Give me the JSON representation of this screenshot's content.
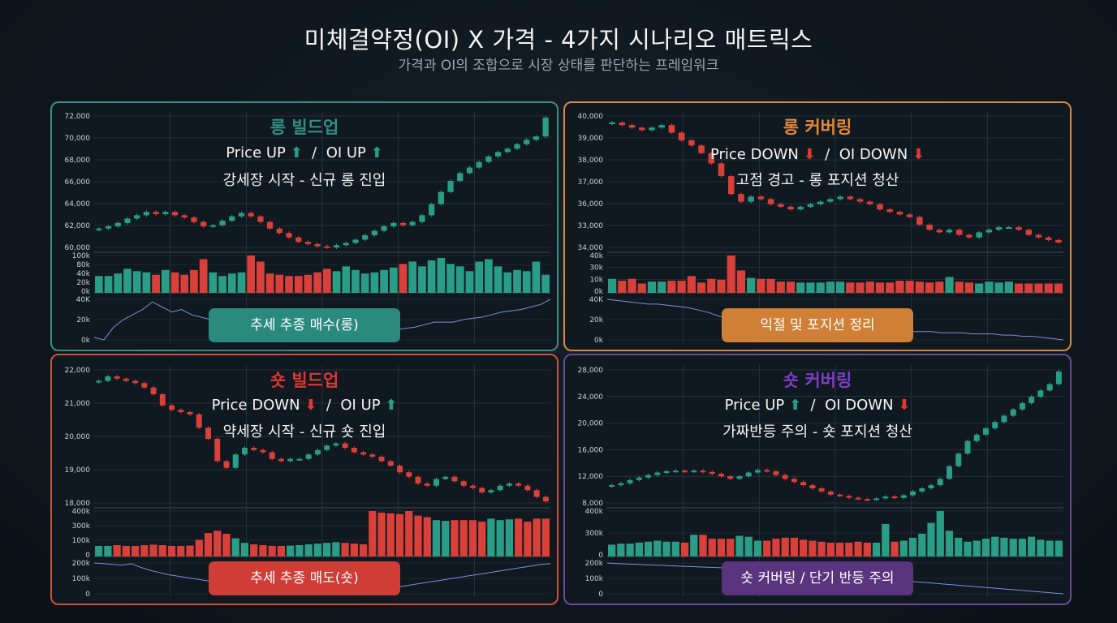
{
  "header": {
    "title": "미체결약정(OI) X 가격 - 4가지 시나리오 매트릭스",
    "subtitle": "가격과 OI의 조합으로 시장 상태를 판단하는 프레임워크"
  },
  "colors": {
    "up": "#2a9d86",
    "down": "#d9403a",
    "oi_line": "#7d8fe0"
  },
  "chart_data": [
    {
      "type": "candlestick",
      "title": "롱 빌드업",
      "title_color": "#2f8f86",
      "border_color": "#3b8f86",
      "price_label": "Price UP",
      "price_arrow": "⬆",
      "price_arrow_color": "#2a9d86",
      "oi_label": "OI UP",
      "oi_arrow": "⬆",
      "oi_arrow_color": "#2a9d86",
      "description": "강세장 시작 - 신규 롱 진입",
      "badge": "추세 추종 매수(롱)",
      "badge_color": "#2a8a7e",
      "price_ticks": [
        "72,000",
        "70,000",
        "68,000",
        "66,000",
        "64,000",
        "62,000",
        "60,000"
      ],
      "volume_ticks": [
        "100k",
        "80k",
        "40k",
        "20k",
        "0k"
      ],
      "oi_ticks": [
        "40K",
        "20k",
        "0k"
      ],
      "closes": [
        62000,
        62200,
        62500,
        62900,
        63200,
        63500,
        63300,
        63500,
        63200,
        63000,
        62600,
        62200,
        62300,
        62700,
        63100,
        63400,
        63100,
        62600,
        62000,
        61600,
        61200,
        60800,
        60600,
        60400,
        60300,
        60500,
        60700,
        61000,
        61400,
        61800,
        62200,
        62500,
        62300,
        62600,
        63200,
        64200,
        65300,
        66300,
        67000,
        67500,
        68000,
        68500,
        68900,
        69200,
        69600,
        70000,
        70300,
        72000
      ],
      "volumes": [
        14,
        14,
        16,
        20,
        18,
        17,
        15,
        19,
        17,
        15,
        19,
        28,
        17,
        14,
        16,
        17,
        31,
        26,
        16,
        15,
        14,
        14,
        15,
        17,
        20,
        18,
        22,
        19,
        16,
        17,
        19,
        21,
        24,
        26,
        22,
        27,
        29,
        24,
        22,
        18,
        26,
        28,
        22,
        17,
        19,
        18,
        26,
        15
      ],
      "oi": [
        6,
        4,
        14,
        20,
        24,
        28,
        34,
        30,
        26,
        28,
        24,
        22,
        20,
        18,
        16,
        14,
        12,
        10,
        8,
        6,
        7,
        8,
        10,
        10,
        10,
        11,
        12,
        12,
        11,
        11,
        12,
        12,
        13,
        14,
        16,
        18,
        18,
        18,
        20,
        21,
        22,
        24,
        26,
        27,
        28,
        30,
        32,
        36
      ]
    },
    {
      "type": "candlestick",
      "title": "롱 커버링",
      "title_color": "#e08a3a",
      "border_color": "#d98a3e",
      "price_label": "Price DOWN",
      "price_arrow": "⬇",
      "price_arrow_color": "#e03a2f",
      "oi_label": "OI DOWN",
      "oi_arrow": "⬇",
      "oi_arrow_color": "#e03a2f",
      "description": "고점 경고 - 롱 포지션 청산",
      "badge": "익절 및 포지션 정리",
      "badge_color": "#cf7f36",
      "price_ticks": [
        "40,000",
        "39,000",
        "38,000",
        "37,000",
        "36,000",
        "33,000",
        "34,000"
      ],
      "volume_ticks": [
        "40k",
        "30k",
        "10k",
        "0k"
      ],
      "oi_ticks": [
        "40K",
        "20k",
        "0k"
      ],
      "closes": [
        39100,
        39000,
        38900,
        38800,
        38900,
        39000,
        38700,
        38400,
        38200,
        37900,
        37500,
        37000,
        36300,
        36000,
        36200,
        36100,
        35900,
        35800,
        35700,
        35800,
        35900,
        36000,
        36100,
        36200,
        36100,
        36000,
        35900,
        35700,
        35600,
        35500,
        35400,
        35100,
        34900,
        34800,
        34900,
        34700,
        34600,
        34800,
        34900,
        35000,
        35000,
        34900,
        34700,
        34600,
        34500,
        34400
      ],
      "volumes": [
        15,
        13,
        15,
        10,
        12,
        12,
        13,
        13,
        18,
        11,
        15,
        14,
        40,
        24,
        16,
        15,
        15,
        12,
        12,
        11,
        11,
        11,
        12,
        12,
        11,
        11,
        12,
        11,
        11,
        13,
        13,
        12,
        11,
        12,
        17,
        12,
        11,
        10,
        12,
        11,
        12,
        10,
        10,
        10,
        10,
        10
      ],
      "oi": [
        36,
        35,
        34,
        33,
        32,
        32,
        31,
        30,
        29,
        27,
        25,
        22,
        20,
        18,
        17,
        17,
        16,
        16,
        15,
        15,
        14,
        14,
        14,
        13,
        13,
        13,
        12,
        11,
        11,
        10,
        9,
        9,
        9,
        8,
        8,
        8,
        7,
        7,
        7,
        6,
        6,
        5,
        5,
        4,
        3,
        2
      ]
    },
    {
      "type": "candlestick",
      "title": "숏 빌드업",
      "title_color": "#e0372e",
      "border_color": "#d0503f",
      "price_label": "Price DOWN",
      "price_arrow": "⬇",
      "price_arrow_color": "#e03a2f",
      "oi_label": "OI UP",
      "oi_arrow": "⬆",
      "oi_arrow_color": "#2a9d86",
      "description": "약세장 시작 - 신규 숏 진입",
      "badge": "추세 추종 매도(숏)",
      "badge_color": "#cf3d36",
      "price_ticks": [
        "22,000",
        "21,000",
        "20,000",
        "19,000",
        "18,000"
      ],
      "volume_ticks": [
        "400k",
        "300k",
        "100k",
        "0"
      ],
      "oi_ticks": [
        "200k",
        "100k",
        "0"
      ],
      "closes": [
        22100,
        22300,
        22200,
        22100,
        22000,
        21800,
        21500,
        21000,
        20800,
        20700,
        20600,
        20000,
        19500,
        18500,
        18200,
        18800,
        19100,
        19000,
        18900,
        18600,
        18500,
        18600,
        18600,
        18800,
        19000,
        19200,
        19300,
        19100,
        18900,
        18800,
        18700,
        18500,
        18300,
        18000,
        17800,
        17500,
        17400,
        17700,
        17800,
        17600,
        17400,
        17300,
        17100,
        17200,
        17400,
        17500,
        17400,
        17200,
        16900,
        16700
      ],
      "volumes": [
        70,
        70,
        75,
        70,
        70,
        75,
        78,
        75,
        70,
        70,
        72,
        110,
        155,
        170,
        150,
        120,
        90,
        80,
        75,
        70,
        70,
        72,
        75,
        80,
        85,
        90,
        95,
        90,
        85,
        80,
        300,
        290,
        285,
        280,
        300,
        270,
        260,
        240,
        235,
        240,
        240,
        240,
        230,
        250,
        240,
        245,
        250,
        230,
        250,
        250
      ],
      "oi": [
        260,
        255,
        250,
        245,
        255,
        230,
        210,
        195,
        180,
        170,
        160,
        150,
        140,
        130,
        115,
        100,
        90,
        80,
        70,
        60,
        55,
        50,
        50,
        55,
        60,
        65,
        70,
        65,
        60,
        60,
        70,
        80,
        90,
        100,
        110,
        120,
        130,
        140,
        150,
        160,
        170,
        180,
        190,
        200,
        210,
        220,
        230,
        240,
        250,
        255
      ]
    },
    {
      "type": "candlestick",
      "title": "숏 커버링",
      "title_color": "#7b3fc4",
      "border_color": "#6a4a9a",
      "price_label": "Price UP",
      "price_arrow": "⬆",
      "price_arrow_color": "#2a9d86",
      "oi_label": "OI DOWN",
      "oi_arrow": "⬇",
      "oi_arrow_color": "#e03a2f",
      "description": "가짜반등 주의 - 숏 포지션 청산",
      "badge": "숏 커버링 / 단기 반등 주의",
      "badge_color": "#5b3480",
      "price_ticks": [
        "28,000",
        "24,000",
        "20,000",
        "16,000",
        "12,000",
        "8,000"
      ],
      "volume_ticks": [
        "400k",
        "300k",
        "0"
      ],
      "oi_ticks": [
        "200k",
        "100k",
        "0"
      ],
      "closes": [
        12000,
        12300,
        12800,
        13200,
        13600,
        14000,
        14200,
        14300,
        14200,
        14300,
        14100,
        13800,
        13400,
        13000,
        13400,
        14000,
        14400,
        14200,
        13600,
        13000,
        12500,
        12000,
        11500,
        11000,
        10500,
        10300,
        10000,
        9800,
        9700,
        9900,
        10200,
        10000,
        10400,
        11000,
        11500,
        12000,
        13000,
        15000,
        17000,
        19000,
        20000,
        21000,
        22000,
        23000,
        24000,
        25000,
        26000,
        27000,
        28000,
        30000
      ],
      "volumes": [
        120,
        130,
        130,
        140,
        150,
        160,
        150,
        150,
        140,
        220,
        220,
        180,
        180,
        180,
        210,
        200,
        160,
        160,
        180,
        190,
        190,
        170,
        160,
        150,
        140,
        140,
        140,
        150,
        140,
        140,
        330,
        150,
        160,
        190,
        230,
        340,
        460,
        260,
        190,
        150,
        160,
        180,
        200,
        190,
        180,
        180,
        200,
        170,
        160,
        160
      ],
      "oi": [
        195,
        192,
        190,
        188,
        186,
        184,
        182,
        180,
        178,
        176,
        174,
        172,
        170,
        168,
        166,
        164,
        162,
        160,
        156,
        152,
        148,
        144,
        140,
        136,
        132,
        128,
        124,
        120,
        116,
        112,
        108,
        104,
        100,
        96,
        92,
        88,
        84,
        80,
        76,
        72,
        68,
        64,
        60,
        56,
        52,
        48,
        44,
        40,
        36,
        32
      ]
    }
  ]
}
